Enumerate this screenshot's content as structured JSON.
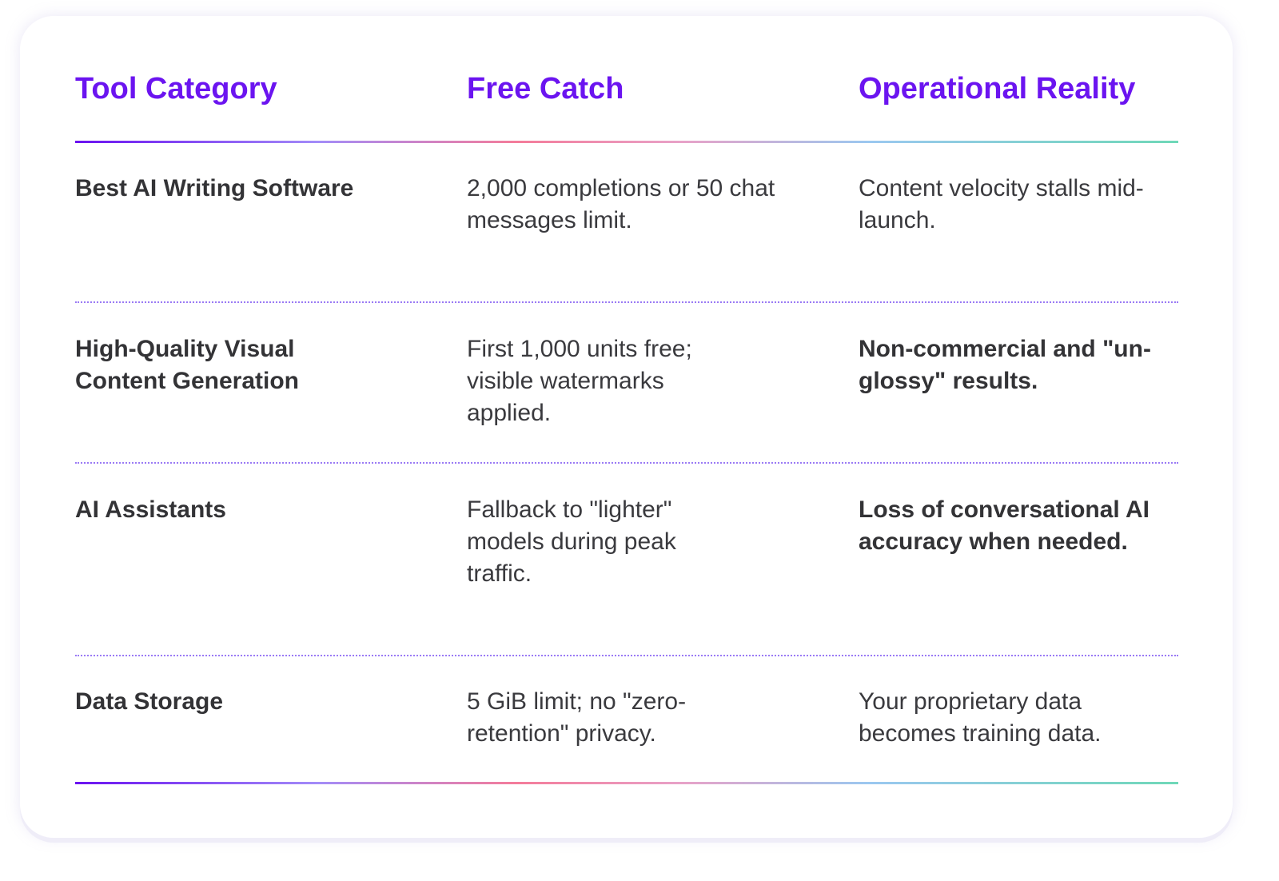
{
  "colors": {
    "header": "#6b14f0",
    "text": "#333336",
    "gradient": [
      "#6a12f0",
      "#f47c9a",
      "#9bc8f0",
      "#6fd8b8"
    ]
  },
  "table": {
    "headers": [
      "Tool Category",
      "Free Catch",
      "Operational Reality"
    ],
    "rows": [
      [
        "Best AI Writing Software",
        "2,000 completions or 50 chat messages limit.",
        "Content velocity stalls mid-launch."
      ],
      [
        "High-Quality Visual Content Generation",
        "First 1,000 units free; visible watermarks applied.",
        "Non-commercial and \"un-glossy\" results."
      ],
      [
        "AI Assistants",
        "Fallback to \"lighter\" models during peak traffic.",
        "Loss of conversational AI accuracy when needed."
      ],
      [
        "Data Storage",
        "5 GiB limit; no \"zero-retention\" privacy.",
        "Your proprietary data becomes training data."
      ]
    ]
  }
}
